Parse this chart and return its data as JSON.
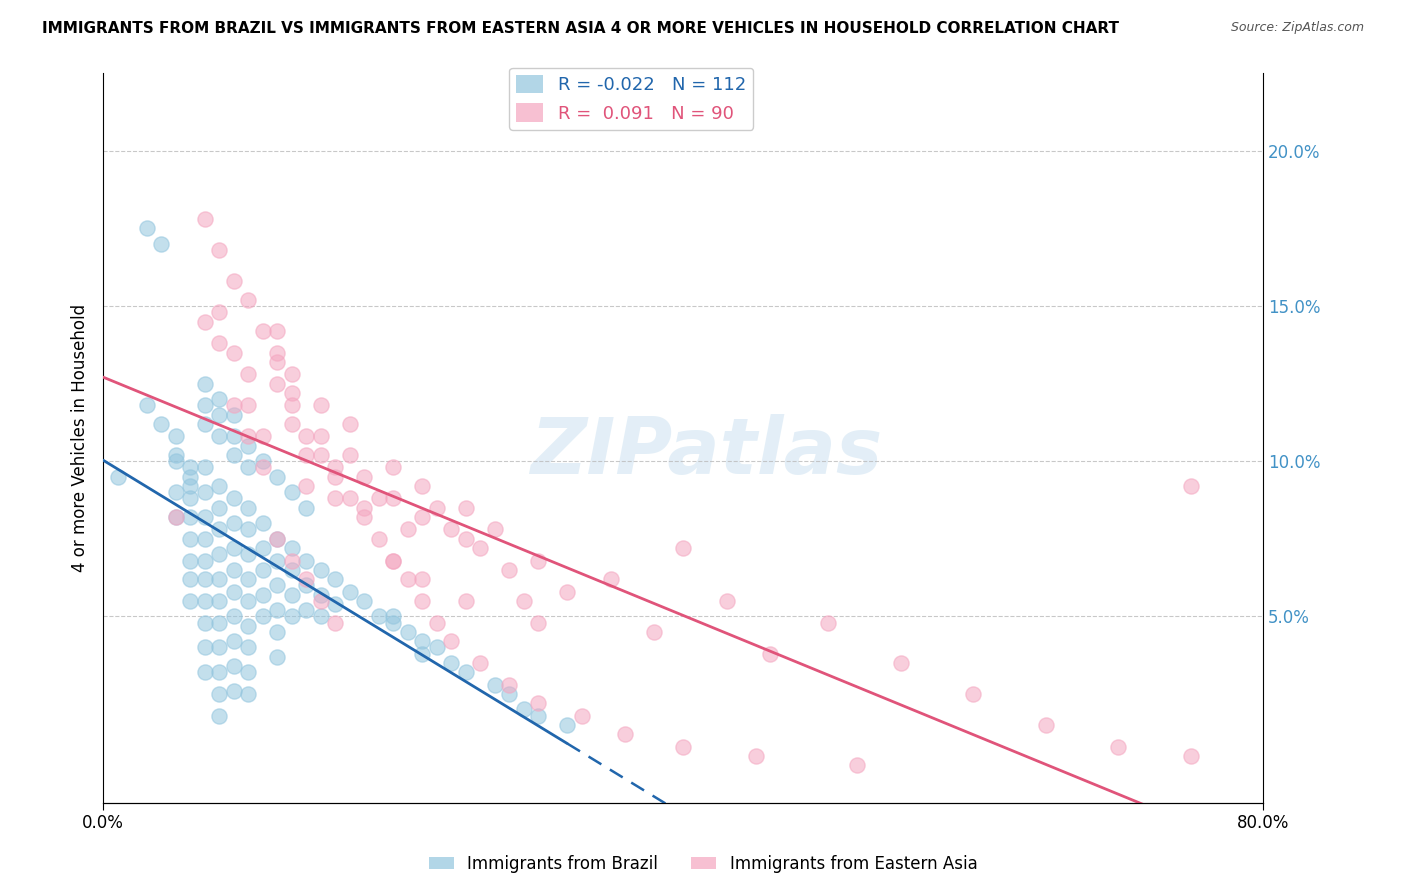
{
  "title": "IMMIGRANTS FROM BRAZIL VS IMMIGRANTS FROM EASTERN ASIA 4 OR MORE VEHICLES IN HOUSEHOLD CORRELATION CHART",
  "source": "Source: ZipAtlas.com",
  "ylabel": "4 or more Vehicles in Household",
  "right_yticks": [
    "20.0%",
    "15.0%",
    "10.0%",
    "5.0%"
  ],
  "right_ytick_vals": [
    0.2,
    0.15,
    0.1,
    0.05
  ],
  "xlim": [
    0.0,
    0.8
  ],
  "ylim": [
    -0.01,
    0.225
  ],
  "legend_brazil_R": "-0.022",
  "legend_brazil_N": "112",
  "legend_ea_R": "0.091",
  "legend_ea_N": "90",
  "brazil_color": "#92c5de",
  "eastern_asia_color": "#f4a6c0",
  "brazil_line_color": "#2166ac",
  "eastern_asia_line_color": "#e0547a",
  "watermark": "ZIPatlas",
  "brazil_x": [
    0.01,
    0.03,
    0.04,
    0.05,
    0.05,
    0.05,
    0.06,
    0.06,
    0.06,
    0.06,
    0.06,
    0.06,
    0.06,
    0.07,
    0.07,
    0.07,
    0.07,
    0.07,
    0.07,
    0.07,
    0.07,
    0.07,
    0.07,
    0.08,
    0.08,
    0.08,
    0.08,
    0.08,
    0.08,
    0.08,
    0.08,
    0.08,
    0.08,
    0.08,
    0.09,
    0.09,
    0.09,
    0.09,
    0.09,
    0.09,
    0.09,
    0.09,
    0.09,
    0.1,
    0.1,
    0.1,
    0.1,
    0.1,
    0.1,
    0.1,
    0.1,
    0.1,
    0.11,
    0.11,
    0.11,
    0.11,
    0.11,
    0.12,
    0.12,
    0.12,
    0.12,
    0.12,
    0.12,
    0.13,
    0.13,
    0.13,
    0.13,
    0.14,
    0.14,
    0.14,
    0.15,
    0.15,
    0.15,
    0.16,
    0.16,
    0.17,
    0.18,
    0.19,
    0.2,
    0.21,
    0.22,
    0.22,
    0.23,
    0.24,
    0.25,
    0.27,
    0.28,
    0.29,
    0.3,
    0.32,
    0.03,
    0.04,
    0.05,
    0.05,
    0.06,
    0.06,
    0.07,
    0.07,
    0.07,
    0.08,
    0.08,
    0.08,
    0.09,
    0.09,
    0.09,
    0.1,
    0.1,
    0.11,
    0.12,
    0.13,
    0.14,
    0.2
  ],
  "brazil_y": [
    0.095,
    0.175,
    0.17,
    0.1,
    0.09,
    0.082,
    0.095,
    0.088,
    0.082,
    0.075,
    0.068,
    0.062,
    0.055,
    0.098,
    0.09,
    0.082,
    0.075,
    0.068,
    0.062,
    0.055,
    0.048,
    0.04,
    0.032,
    0.092,
    0.085,
    0.078,
    0.07,
    0.062,
    0.055,
    0.048,
    0.04,
    0.032,
    0.025,
    0.018,
    0.088,
    0.08,
    0.072,
    0.065,
    0.058,
    0.05,
    0.042,
    0.034,
    0.026,
    0.085,
    0.078,
    0.07,
    0.062,
    0.055,
    0.047,
    0.04,
    0.032,
    0.025,
    0.08,
    0.072,
    0.065,
    0.057,
    0.05,
    0.075,
    0.068,
    0.06,
    0.052,
    0.045,
    0.037,
    0.072,
    0.065,
    0.057,
    0.05,
    0.068,
    0.06,
    0.052,
    0.065,
    0.057,
    0.05,
    0.062,
    0.054,
    0.058,
    0.055,
    0.05,
    0.048,
    0.045,
    0.042,
    0.038,
    0.04,
    0.035,
    0.032,
    0.028,
    0.025,
    0.02,
    0.018,
    0.015,
    0.118,
    0.112,
    0.108,
    0.102,
    0.098,
    0.092,
    0.125,
    0.118,
    0.112,
    0.12,
    0.115,
    0.108,
    0.115,
    0.108,
    0.102,
    0.105,
    0.098,
    0.1,
    0.095,
    0.09,
    0.085,
    0.05
  ],
  "ea_x": [
    0.05,
    0.07,
    0.08,
    0.08,
    0.09,
    0.1,
    0.1,
    0.11,
    0.11,
    0.12,
    0.12,
    0.13,
    0.13,
    0.14,
    0.14,
    0.15,
    0.15,
    0.16,
    0.16,
    0.17,
    0.17,
    0.18,
    0.18,
    0.19,
    0.2,
    0.2,
    0.21,
    0.22,
    0.22,
    0.23,
    0.24,
    0.25,
    0.25,
    0.26,
    0.27,
    0.28,
    0.29,
    0.3,
    0.32,
    0.35,
    0.38,
    0.4,
    0.43,
    0.46,
    0.5,
    0.55,
    0.6,
    0.65,
    0.7,
    0.75,
    0.07,
    0.08,
    0.09,
    0.09,
    0.1,
    0.1,
    0.11,
    0.12,
    0.12,
    0.13,
    0.13,
    0.14,
    0.15,
    0.16,
    0.17,
    0.18,
    0.19,
    0.2,
    0.21,
    0.22,
    0.23,
    0.24,
    0.26,
    0.28,
    0.3,
    0.33,
    0.36,
    0.4,
    0.45,
    0.52,
    0.12,
    0.13,
    0.14,
    0.15,
    0.16,
    0.2,
    0.22,
    0.25,
    0.3,
    0.75
  ],
  "ea_y": [
    0.082,
    0.145,
    0.148,
    0.138,
    0.135,
    0.128,
    0.118,
    0.108,
    0.098,
    0.142,
    0.132,
    0.122,
    0.112,
    0.102,
    0.092,
    0.118,
    0.108,
    0.098,
    0.088,
    0.112,
    0.102,
    0.095,
    0.085,
    0.088,
    0.098,
    0.088,
    0.078,
    0.092,
    0.082,
    0.085,
    0.078,
    0.085,
    0.075,
    0.072,
    0.078,
    0.065,
    0.055,
    0.068,
    0.058,
    0.062,
    0.045,
    0.072,
    0.055,
    0.038,
    0.048,
    0.035,
    0.025,
    0.015,
    0.008,
    0.005,
    0.178,
    0.168,
    0.158,
    0.118,
    0.152,
    0.108,
    0.142,
    0.135,
    0.125,
    0.128,
    0.118,
    0.108,
    0.102,
    0.095,
    0.088,
    0.082,
    0.075,
    0.068,
    0.062,
    0.055,
    0.048,
    0.042,
    0.035,
    0.028,
    0.022,
    0.018,
    0.012,
    0.008,
    0.005,
    0.002,
    0.075,
    0.068,
    0.062,
    0.055,
    0.048,
    0.068,
    0.062,
    0.055,
    0.048,
    0.092
  ]
}
